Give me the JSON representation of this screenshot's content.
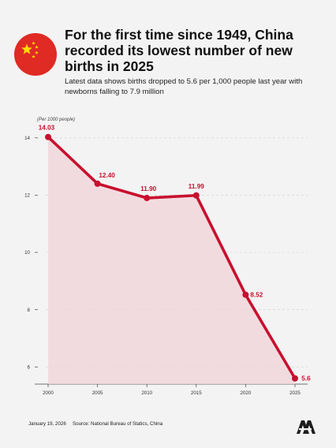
{
  "header": {
    "title": "For the first time since 1949, China recorded its lowest number of new births in 2025",
    "subtitle": "Latest data shows births dropped to 5.6 per 1,000 people last year with newborns falling to 7.9 million"
  },
  "chart_data": {
    "type": "area",
    "title": "",
    "xlabel": "",
    "ylabel": "(Per 1000 people)",
    "x": [
      2000,
      2005,
      2010,
      2015,
      2020,
      2025
    ],
    "x_ticks": [
      "2000",
      "2005",
      "2010",
      "2015",
      "2020",
      "2025"
    ],
    "series": [
      {
        "values": [
          14.03,
          12.4,
          11.9,
          11.99,
          8.52,
          5.6
        ],
        "data_labels": [
          "14.03",
          "12.40",
          "11.90",
          "11.99",
          "8.52",
          "5.6"
        ]
      }
    ],
    "y_ticks": [
      "6",
      "8",
      "10",
      "12",
      "14"
    ],
    "ylim": [
      5.4,
      14.6
    ],
    "xlim": [
      2000,
      2025
    ],
    "grid": true,
    "legend": "none",
    "colors": {
      "line": "#c8102e",
      "fill": "#f2d3d8",
      "grid": "#d0d0d0",
      "axis": "#444444"
    }
  },
  "footer": {
    "date": "January 19, 2026",
    "source": "Source: National Bureau of Statics, China"
  },
  "icons": {
    "flag": "china-flag-icon",
    "logo": "anadolu-agency-logo-icon"
  }
}
